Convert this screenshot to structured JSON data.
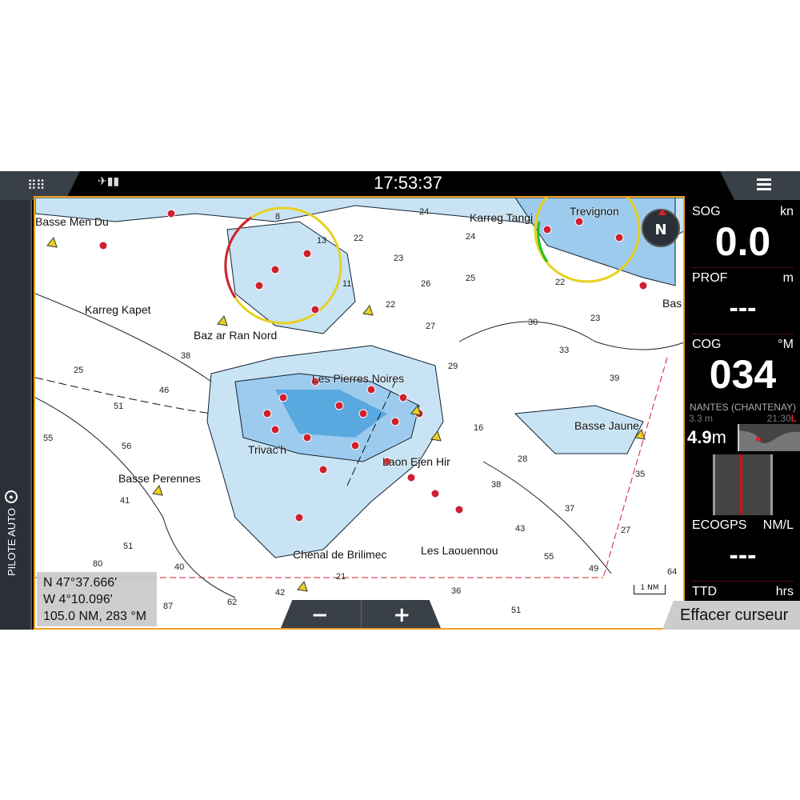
{
  "topbar": {
    "time": "17:53:37",
    "apps_icon": "grid-icon",
    "menu_icon": "hamburger-icon",
    "gps_icon": "satellite-signal-icon"
  },
  "sidebar": {
    "pilot_label": "PILOTE AUTO",
    "pilot_icon": "steering-wheel-icon"
  },
  "map": {
    "labels": [
      "Basse Men Du",
      "Karreg Kapet",
      "Baz ar Ran Nord",
      "Les Pierres Noires",
      "Trivac'h",
      "Laon Ejen Hir",
      "Basse Perennes",
      "Chenal de Brilimec",
      "Les Laouennou",
      "Basse Jaune",
      "Karreg Tangi",
      "Trevignon",
      "Bas"
    ],
    "soundings": [
      "8",
      "13",
      "22",
      "24",
      "23",
      "26",
      "25",
      "24",
      "22",
      "22",
      "27",
      "30",
      "23",
      "33",
      "39",
      "38",
      "25",
      "46",
      "51",
      "55",
      "56",
      "29",
      "16",
      "28",
      "35",
      "38",
      "37",
      "43",
      "41",
      "51",
      "40",
      "42",
      "21",
      "55",
      "49",
      "64",
      "87",
      "62",
      "80",
      "51",
      "36",
      "27",
      "11"
    ],
    "compass": "N",
    "scale": "1 NM",
    "colors": {
      "land": "#ffffff",
      "shallow": "#c8e4f4",
      "medium": "#9ccbee",
      "deep": "#5aa8e0",
      "border": "#f0a020",
      "hazard": "#d02030",
      "buoy": "#e8d020"
    }
  },
  "cursor": {
    "lat": "N  47°37.666'",
    "lon": "W  4°10.096'",
    "range": "105.0 NM, 283 °M"
  },
  "zoom": {
    "out": "−",
    "in": "+"
  },
  "panel": {
    "sog": {
      "label": "SOG",
      "unit": "kn",
      "value": "0.0"
    },
    "prof": {
      "label": "PROF",
      "unit": "m",
      "value": "---"
    },
    "cog": {
      "label": "COG",
      "unit": "°M",
      "value": "034"
    },
    "tide": {
      "station": "NANTES (CHANTENAY)",
      "low": "3.3 m",
      "time": "21:30",
      "type": "L",
      "value": "4.9",
      "unit": "m"
    },
    "eco": {
      "label": "ECOGPS",
      "unit": "NM/L",
      "value": "---"
    },
    "ttd": {
      "label": "TTD",
      "unit": "hrs"
    }
  },
  "clear_cursor": "Effacer curseur"
}
